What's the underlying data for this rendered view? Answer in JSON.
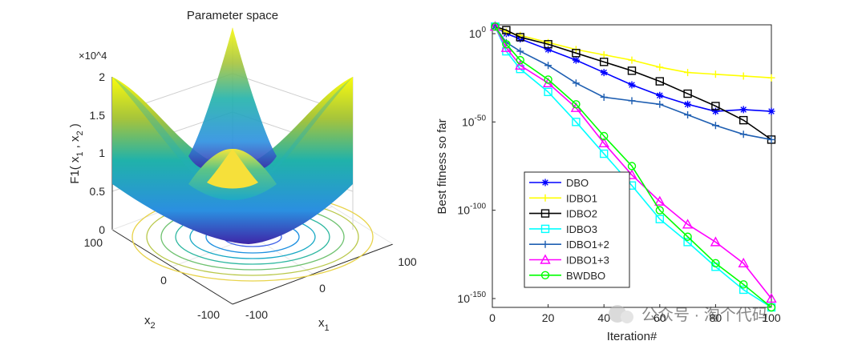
{
  "chart_data": [
    {
      "type": "surface",
      "title": "Parameter space",
      "zlabel": "F1( x_1 , x_2 )",
      "xlabel": "x_1",
      "ylabel": "x_2",
      "zlim": [
        0,
        20000
      ],
      "z_exponent_label": "×10^4",
      "z_ticks": [
        "0",
        "0.5",
        "1",
        "1.5",
        "2"
      ],
      "x_ticks": [
        "-100",
        "0",
        "100"
      ],
      "y_ticks": [
        "-100",
        "0",
        "100"
      ],
      "function": "x1^2 + x2^2",
      "x_range": [
        -100,
        100
      ],
      "y_range": [
        -100,
        100
      ],
      "colors": {
        "low": "#3e26a8",
        "mid": "#20b2aa",
        "high": "#f9fb0e"
      }
    },
    {
      "type": "line",
      "xlabel": "Iteration#",
      "ylabel": "Best fitness so far",
      "y_scale": "log",
      "xlim": [
        0,
        100
      ],
      "ylim_exponent": [
        -155,
        5
      ],
      "x_ticks": [
        "0",
        "20",
        "40",
        "60",
        "80",
        "100"
      ],
      "y_ticks": [
        "10^0",
        "10^-50",
        "10^-100",
        "10^-150"
      ],
      "legend_position": "lower-left",
      "series": [
        {
          "name": "DBO",
          "color": "#0000ff",
          "marker": "asterisk",
          "x": [
            1,
            5,
            10,
            20,
            30,
            40,
            50,
            60,
            70,
            80,
            90,
            100
          ],
          "log10_y": [
            4,
            0,
            -3,
            -9,
            -15,
            -22,
            -29,
            -35,
            -40,
            -44,
            -43,
            -44
          ]
        },
        {
          "name": "IDBO1",
          "color": "#ffff00",
          "marker": "plus",
          "x": [
            1,
            5,
            10,
            20,
            30,
            40,
            50,
            60,
            70,
            80,
            90,
            100
          ],
          "log10_y": [
            4,
            1,
            -1,
            -5,
            -9,
            -12,
            -15,
            -19,
            -22,
            -23,
            -24,
            -25
          ]
        },
        {
          "name": "IDBO2",
          "color": "#000000",
          "marker": "square",
          "x": [
            1,
            5,
            10,
            20,
            30,
            40,
            50,
            60,
            70,
            80,
            90,
            100
          ],
          "log10_y": [
            4,
            2,
            -2,
            -6,
            -11,
            -16,
            -21,
            -27,
            -34,
            -41,
            -49,
            -60
          ]
        },
        {
          "name": "IDBO3",
          "color": "#00ffff",
          "marker": "square",
          "x": [
            1,
            5,
            10,
            20,
            30,
            40,
            50,
            60,
            70,
            80,
            90,
            100
          ],
          "log10_y": [
            4,
            -10,
            -20,
            -33,
            -50,
            -68,
            -86,
            -105,
            -118,
            -132,
            -145,
            -155
          ]
        },
        {
          "name": "IDBO1+2",
          "color": "#1f5fb2",
          "marker": "plus",
          "x": [
            1,
            5,
            10,
            20,
            30,
            40,
            50,
            60,
            70,
            80,
            90,
            100
          ],
          "log10_y": [
            4,
            -5,
            -10,
            -18,
            -28,
            -36,
            -38,
            -40,
            -46,
            -52,
            -57,
            -60
          ]
        },
        {
          "name": "IDBO1+3",
          "color": "#ff00ff",
          "marker": "triangle",
          "x": [
            1,
            5,
            10,
            20,
            30,
            40,
            50,
            60,
            70,
            80,
            90,
            100
          ],
          "log10_y": [
            4,
            -8,
            -18,
            -28,
            -42,
            -62,
            -80,
            -95,
            -108,
            -118,
            -130,
            -150
          ]
        },
        {
          "name": "BWDBO",
          "color": "#00ff00",
          "marker": "circle",
          "x": [
            1,
            5,
            10,
            20,
            30,
            40,
            50,
            60,
            70,
            80,
            90,
            100
          ],
          "log10_y": [
            4,
            -6,
            -15,
            -26,
            -40,
            -58,
            -75,
            -100,
            -115,
            -130,
            -142,
            -155
          ]
        }
      ]
    }
  ],
  "watermark": "公众号 · 淘个代码"
}
